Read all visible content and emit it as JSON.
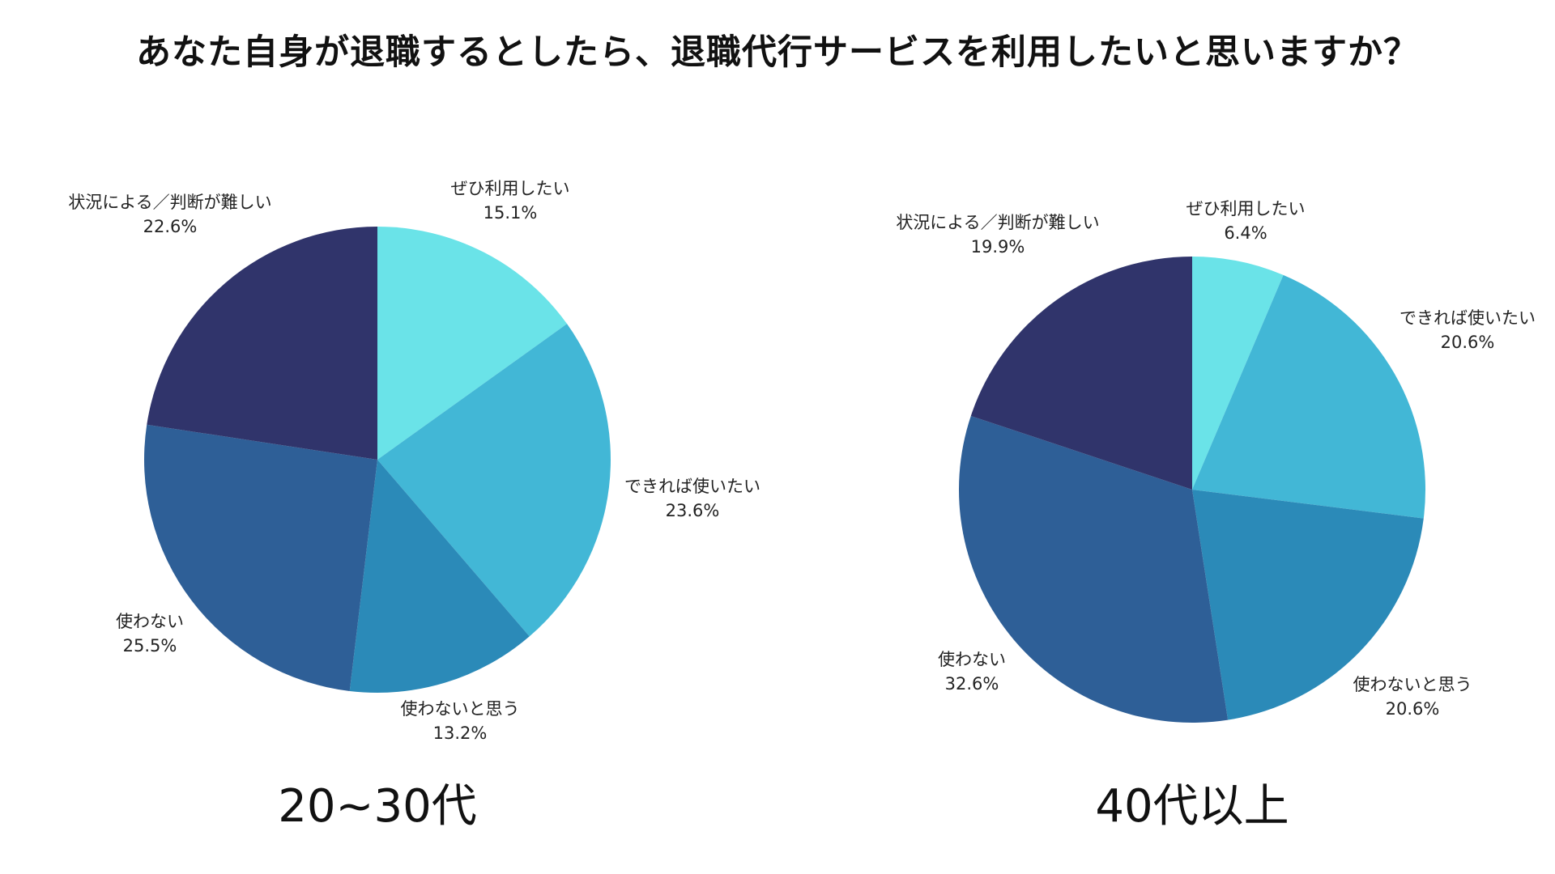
{
  "title": "あなた自身が退職するとしたら、退職代行サービスを利用したいと思いますか？",
  "chart_data": [
    {
      "type": "pie",
      "title": "20~30代",
      "slices": [
        {
          "label": "ぜひ利用したい",
          "value": 15.1,
          "display": "15.1%",
          "color": "#6ae3e8"
        },
        {
          "label": "できれば使いたい",
          "value": 23.6,
          "display": "23.6%",
          "color": "#42b7d6"
        },
        {
          "label": "使わないと思う",
          "value": 13.2,
          "display": "13.2%",
          "color": "#2b8ab8"
        },
        {
          "label": "使わない",
          "value": 25.5,
          "display": "25.5%",
          "color": "#2e5f97"
        },
        {
          "label": "状況による／判断が難しい",
          "value": 22.6,
          "display": "22.6%",
          "color": "#30346b"
        }
      ]
    },
    {
      "type": "pie",
      "title": "40代以上",
      "slices": [
        {
          "label": "ぜひ利用したい",
          "value": 6.4,
          "display": "6.4%",
          "color": "#6ae3e8"
        },
        {
          "label": "できれば使いたい",
          "value": 20.6,
          "display": "20.6%",
          "color": "#42b7d6"
        },
        {
          "label": "使わないと思う",
          "value": 20.6,
          "display": "20.6%",
          "color": "#2b8ab8"
        },
        {
          "label": "使わない",
          "value": 32.6,
          "display": "32.6%",
          "color": "#2e5f97"
        },
        {
          "label": "状況による／判断が難しい",
          "value": 19.9,
          "display": "19.9%",
          "color": "#30346b"
        }
      ]
    }
  ]
}
